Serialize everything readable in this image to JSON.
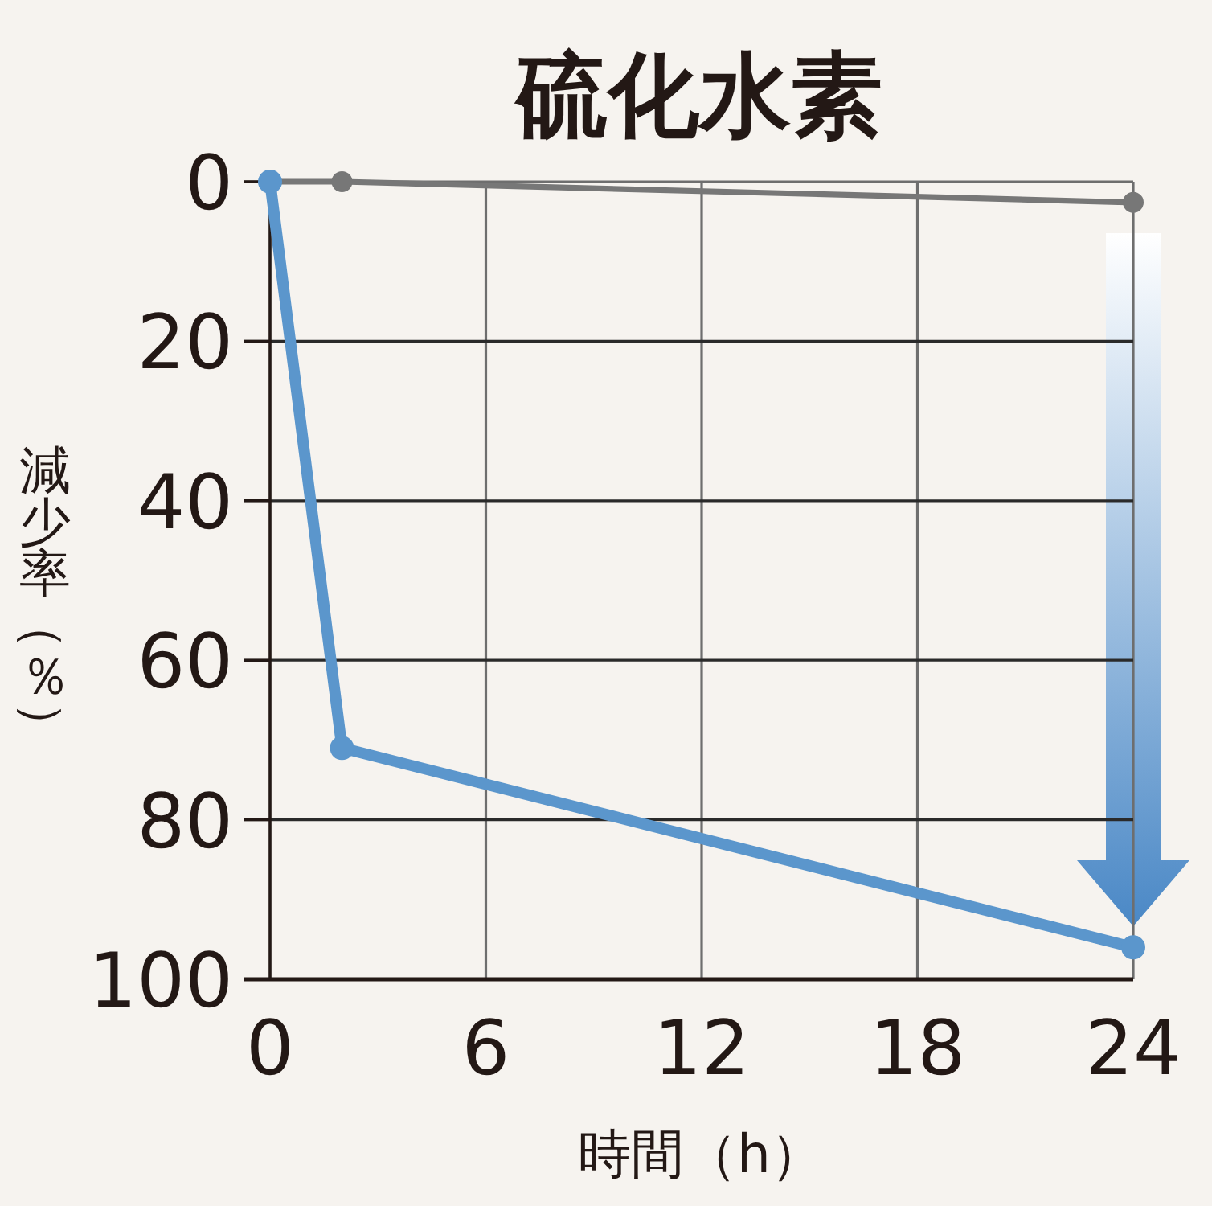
{
  "chart_data": {
    "type": "line",
    "title": "硫化水素",
    "xlabel": "時間（h）",
    "ylabel": "減少率（％）",
    "x": [
      0,
      2,
      24
    ],
    "xlim": [
      0,
      24
    ],
    "xticks": [
      0,
      6,
      12,
      18,
      24
    ],
    "ylim": [
      100,
      0
    ],
    "yticks": [
      0,
      20,
      40,
      60,
      80,
      100
    ],
    "grid": true,
    "marker": "circle",
    "series": [
      {
        "color": "#777777",
        "values": [
          0,
          0,
          2.6
        ]
      },
      {
        "color": "#5b96cc",
        "values": [
          0,
          71,
          96
        ]
      }
    ]
  }
}
